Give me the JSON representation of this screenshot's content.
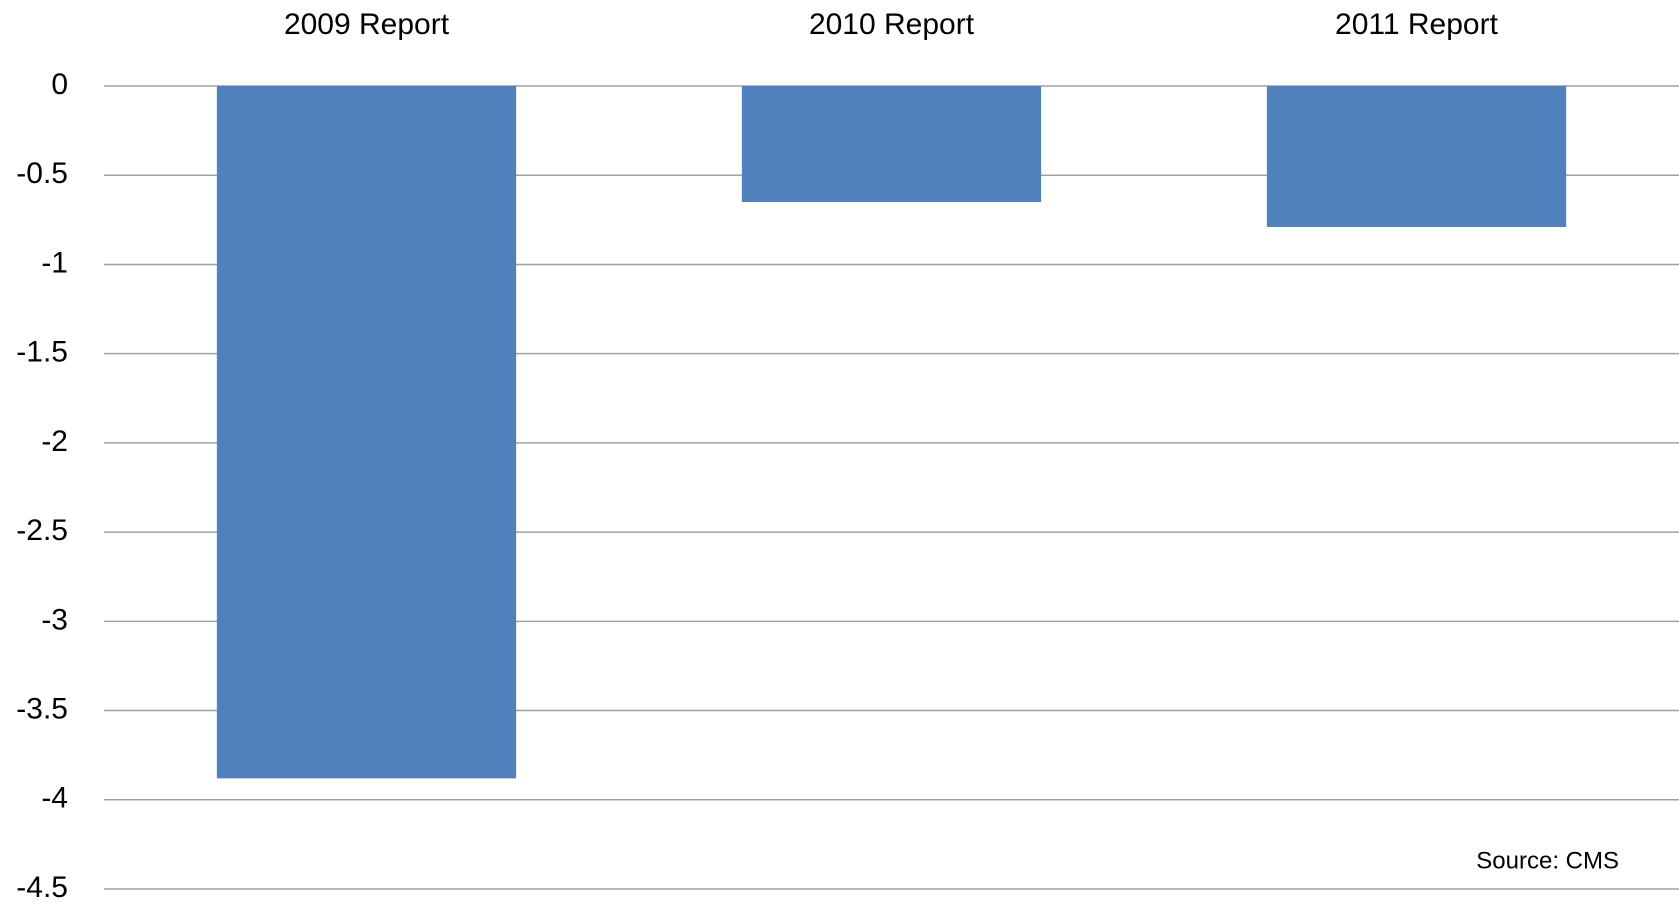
{
  "chart_data": {
    "type": "bar",
    "categories": [
      "2009 Report",
      "2010 Report",
      "2011 Report"
    ],
    "values": [
      -3.88,
      -0.65,
      -0.79
    ],
    "color": "#4f81bd",
    "ylim": [
      -4.5,
      0
    ],
    "yticks": [
      0,
      -0.5,
      -1,
      -1.5,
      -2,
      -2.5,
      -3,
      -3.5,
      -4,
      -4.5
    ],
    "grid": true,
    "annotation": "Source: CMS"
  }
}
